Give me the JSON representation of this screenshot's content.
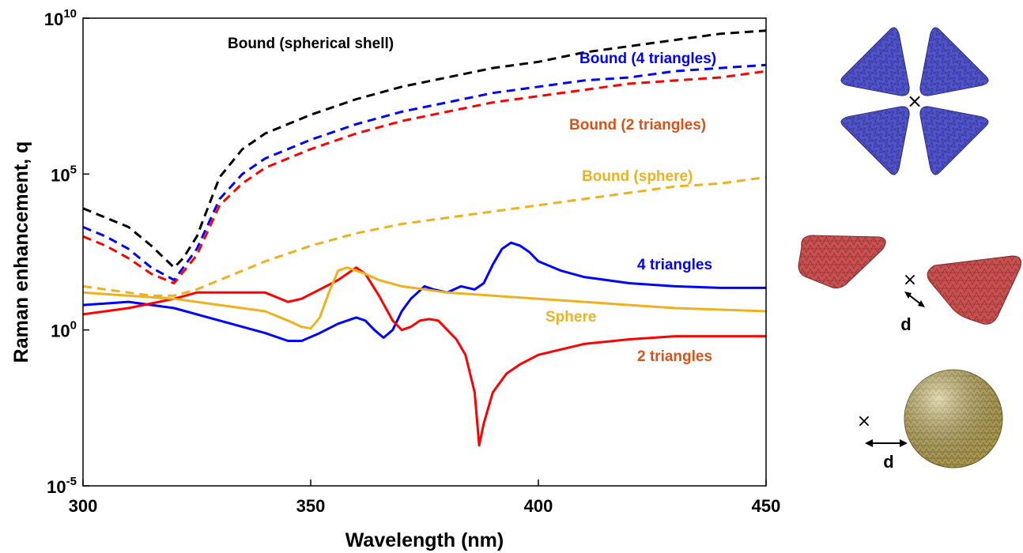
{
  "chart_data": {
    "type": "line",
    "xlabel": "Wavelength (nm)",
    "ylabel": "Raman enhancement, q",
    "xlim": [
      300,
      450
    ],
    "ylim_log10": [
      -5,
      10
    ],
    "y_scale": "log",
    "x_ticks": [
      {
        "value": 300,
        "label": "300"
      },
      {
        "value": 350,
        "label": "350"
      },
      {
        "value": 400,
        "label": "400"
      },
      {
        "value": 450,
        "label": "450"
      }
    ],
    "y_ticks": [
      {
        "exp": -5,
        "base": "10",
        "sup": "-5"
      },
      {
        "exp": 0,
        "base": "10",
        "sup": "0"
      },
      {
        "exp": 5,
        "base": "10",
        "sup": "5"
      },
      {
        "exp": 10,
        "base": "10",
        "sup": "10"
      }
    ],
    "grid": false,
    "series": [
      {
        "label": "Bound (spherical shell)",
        "color": "#000000",
        "dash": true,
        "x": [
          300,
          305,
          310,
          315,
          320,
          322,
          325,
          330,
          335,
          340,
          350,
          360,
          370,
          380,
          390,
          400,
          410,
          420,
          430,
          440,
          450
        ],
        "log10_y": [
          3.9,
          3.6,
          3.3,
          2.7,
          2.0,
          2.3,
          3.0,
          4.9,
          5.8,
          6.3,
          6.9,
          7.4,
          7.8,
          8.1,
          8.4,
          8.6,
          8.9,
          9.1,
          9.3,
          9.5,
          9.6
        ]
      },
      {
        "label": "Bound (4 triangles)",
        "color": "#0000FF",
        "dash": true,
        "x": [
          300,
          305,
          310,
          315,
          320,
          325,
          330,
          335,
          340,
          350,
          360,
          370,
          380,
          390,
          400,
          410,
          420,
          430,
          440,
          450
        ],
        "log10_y": [
          3.3,
          3.0,
          2.6,
          2.0,
          1.6,
          2.6,
          4.2,
          5.0,
          5.5,
          6.1,
          6.6,
          7.0,
          7.3,
          7.6,
          7.8,
          8.0,
          8.1,
          8.3,
          8.4,
          8.5
        ]
      },
      {
        "label": "Bound (2 triangles)",
        "color": "#FF0000",
        "dash": true,
        "x": [
          300,
          305,
          310,
          315,
          320,
          325,
          330,
          335,
          340,
          350,
          360,
          370,
          380,
          390,
          400,
          410,
          420,
          430,
          440,
          450
        ],
        "log10_y": [
          3.0,
          2.7,
          2.3,
          1.8,
          1.5,
          2.4,
          4.0,
          4.7,
          5.2,
          5.8,
          6.3,
          6.7,
          7.0,
          7.3,
          7.5,
          7.7,
          7.9,
          8.0,
          8.1,
          8.3
        ]
      },
      {
        "label": "Bound (sphere)",
        "color": "#EDB120",
        "dash": true,
        "x": [
          300,
          305,
          310,
          315,
          320,
          325,
          330,
          340,
          350,
          360,
          370,
          380,
          390,
          400,
          410,
          420,
          430,
          440,
          450
        ],
        "log10_y": [
          1.4,
          1.3,
          1.2,
          1.1,
          1.1,
          1.3,
          1.6,
          2.2,
          2.7,
          3.1,
          3.4,
          3.6,
          3.8,
          4.0,
          4.2,
          4.4,
          4.6,
          4.7,
          4.9
        ]
      },
      {
        "label": "4 triangles",
        "color": "#0000FF",
        "dash": false,
        "x": [
          300,
          310,
          320,
          330,
          340,
          345,
          348,
          352,
          356,
          360,
          362,
          364,
          366,
          368,
          370,
          372,
          375,
          377,
          380,
          383,
          386,
          388,
          390,
          392,
          394,
          396,
          398,
          400,
          405,
          410,
          420,
          430,
          440,
          450
        ],
        "log10_y": [
          0.8,
          0.9,
          0.7,
          0.3,
          -0.1,
          -0.35,
          -0.35,
          -0.1,
          0.2,
          0.4,
          0.3,
          0.0,
          -0.25,
          0.0,
          0.6,
          1.0,
          1.4,
          1.3,
          1.2,
          1.4,
          1.3,
          1.5,
          2.1,
          2.6,
          2.8,
          2.7,
          2.5,
          2.2,
          1.9,
          1.7,
          1.5,
          1.4,
          1.35,
          1.35
        ]
      },
      {
        "label": "2 triangles",
        "color": "#FF0000",
        "dash": false,
        "x": [
          300,
          310,
          320,
          325,
          330,
          340,
          345,
          348,
          352,
          356,
          360,
          362,
          365,
          368,
          370,
          372,
          374,
          376,
          378,
          380,
          382,
          384,
          386,
          387,
          388,
          390,
          393,
          396,
          400,
          410,
          420,
          430,
          440,
          450
        ],
        "log10_y": [
          0.5,
          0.7,
          1.0,
          1.2,
          1.2,
          1.2,
          0.9,
          1.0,
          1.3,
          1.6,
          2.0,
          1.8,
          1.1,
          0.3,
          0.0,
          0.1,
          0.3,
          0.35,
          0.3,
          0.0,
          -0.3,
          -0.8,
          -2.0,
          -3.7,
          -3.0,
          -2.0,
          -1.4,
          -1.1,
          -0.8,
          -0.45,
          -0.3,
          -0.2,
          -0.2,
          -0.2
        ]
      },
      {
        "label": "Sphere",
        "color": "#EDB120",
        "dash": false,
        "x": [
          300,
          310,
          320,
          330,
          340,
          345,
          348,
          350,
          352,
          354,
          356,
          358,
          360,
          362,
          365,
          370,
          380,
          390,
          400,
          410,
          420,
          430,
          440,
          450
        ],
        "log10_y": [
          1.2,
          1.1,
          1.0,
          0.8,
          0.6,
          0.3,
          0.1,
          0.05,
          0.4,
          1.2,
          1.9,
          2.0,
          1.9,
          1.8,
          1.6,
          1.4,
          1.2,
          1.1,
          1.0,
          0.9,
          0.8,
          0.7,
          0.65,
          0.6
        ]
      }
    ],
    "annotations": [
      {
        "text": "Bound (spherical shell)",
        "color": "#000000"
      },
      {
        "text": "Bound (4 triangles)",
        "color": "#0000FF"
      },
      {
        "text": "Bound (2 triangles)",
        "color": "#D95319"
      },
      {
        "text": "Bound (sphere)",
        "color": "#EDB120"
      },
      {
        "text": "4 triangles",
        "color": "#0000FF"
      },
      {
        "text": "Sphere",
        "color": "#EDB120"
      },
      {
        "text": "2 triangles",
        "color": "#D95319"
      }
    ]
  },
  "insets": {
    "marker_glyph": "×",
    "distance_label": "d",
    "four_triangle_color": "#4F52C9",
    "two_triangle_color": "#C9504F",
    "sphere_color": "#C8B35C"
  }
}
